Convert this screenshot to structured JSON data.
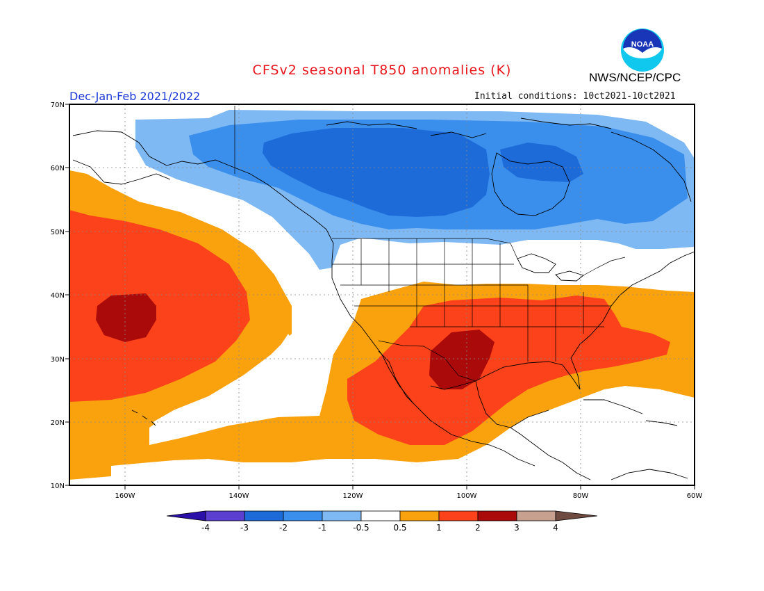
{
  "header": {
    "title": "CFSv2 seasonal T850 anomalies (K)",
    "season": "Dec-Jan-Feb 2021/2022",
    "initial_conditions": "Initial conditions: 10ct2021-10ct2021",
    "agency": "NWS/NCEP/CPC",
    "logo_text": "NOAA"
  },
  "axes": {
    "lon_labels": [
      "160W",
      "140W",
      "120W",
      "100W",
      "80W",
      "60W"
    ],
    "lat_labels": [
      "70N",
      "60N",
      "50N",
      "40N",
      "30N",
      "20N",
      "10N"
    ]
  },
  "colorbar": {
    "ticks": [
      "-4",
      "-3",
      "-2",
      "-1",
      "-0.5",
      "0.5",
      "1",
      "2",
      "3",
      "4"
    ],
    "colors": [
      "#2a10a8",
      "#5a3fd0",
      "#1d6ad9",
      "#3b8fec",
      "#7fb9f4",
      "#ffffff",
      "#f9a20e",
      "#fb421a",
      "#aa0a0a",
      "#c8a090",
      "#6e4a40"
    ]
  },
  "legend_colors": {
    "very_warm": "#aa0a0a",
    "warm": "#fb421a",
    "mild": "#f9a20e",
    "cool": "#7fb9f4",
    "colder": "#3b8fec",
    "cold": "#1d6ad9"
  }
}
